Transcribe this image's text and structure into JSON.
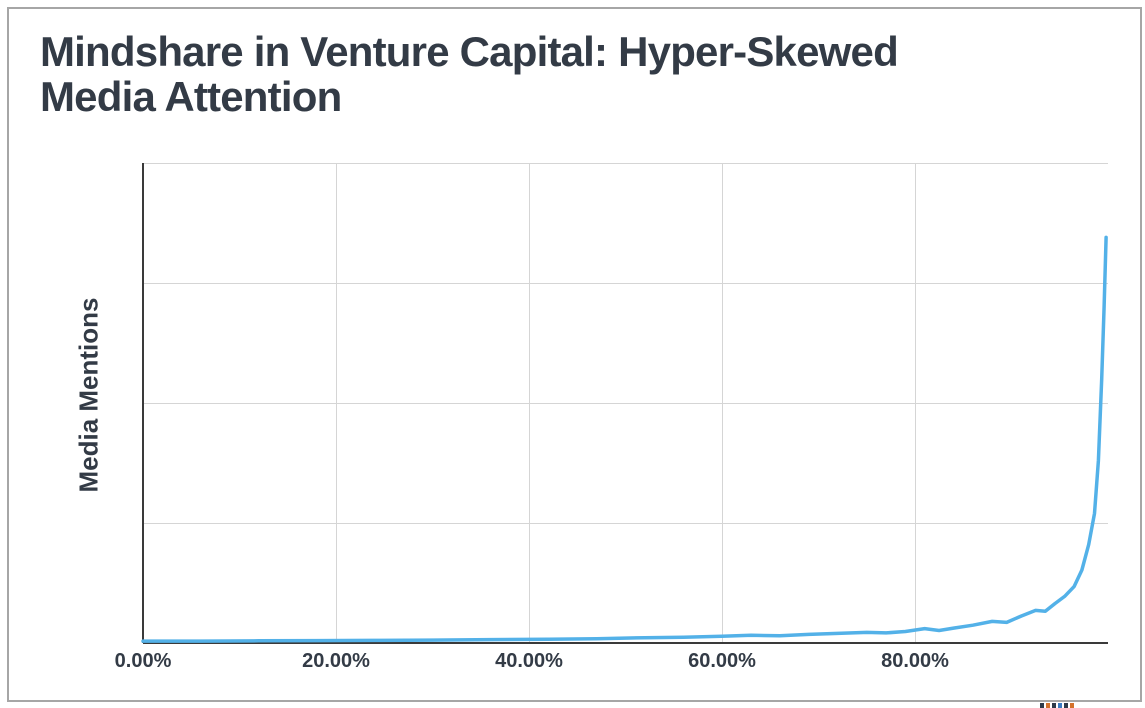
{
  "page": {
    "background": "#ffffff",
    "frame_border_color": "#a6a6a6"
  },
  "title": {
    "line1": "Mindshare in Venture Capital: Hyper-Skewed",
    "line2": "Media Attention",
    "full_text": "Mindshare in Venture Capital: Hyper-Skewed Media Attention",
    "color": "#333b46"
  },
  "chart_data": {
    "type": "line",
    "title": "Mindshare in Venture Capital: Hyper-Skewed Media Attention",
    "xlabel": "",
    "ylabel": "Media Mentions",
    "xlim": [
      0,
      100
    ],
    "ylim": [
      0,
      1
    ],
    "grid": true,
    "legend": "none",
    "y_tick_labels_shown": false,
    "x_tick_values": [
      0,
      20,
      40,
      60,
      80
    ],
    "x_tick_labels": [
      "0.00%",
      "20.00%",
      "40.00%",
      "60.00%",
      "80.00%"
    ],
    "y_grid_fractions_from_top": [
      0,
      0.25,
      0.5,
      0.75
    ],
    "line_color": "#53b1e8",
    "line_width": 3.5,
    "axis_color": "#3a3a3a",
    "grid_color": "#d5d5d5",
    "label_color": "#333b46",
    "series": [
      {
        "name": "Media Mentions",
        "note": "x = percentile of firms (%), y = relative media mentions normalized to axis max; curve is near zero until ~80% then spikes at the far right tail",
        "points": [
          [
            0,
            0.004
          ],
          [
            6,
            0.004
          ],
          [
            12,
            0.0045
          ],
          [
            18,
            0.005
          ],
          [
            24,
            0.0055
          ],
          [
            30,
            0.006
          ],
          [
            36,
            0.007
          ],
          [
            42,
            0.008
          ],
          [
            47,
            0.009
          ],
          [
            52,
            0.011
          ],
          [
            56,
            0.012
          ],
          [
            60,
            0.014
          ],
          [
            63,
            0.016
          ],
          [
            66,
            0.015
          ],
          [
            69,
            0.018
          ],
          [
            72,
            0.02
          ],
          [
            75,
            0.022
          ],
          [
            77,
            0.021
          ],
          [
            79,
            0.024
          ],
          [
            81,
            0.03
          ],
          [
            82.5,
            0.026
          ],
          [
            84,
            0.031
          ],
          [
            86,
            0.037
          ],
          [
            88,
            0.045
          ],
          [
            89.5,
            0.043
          ],
          [
            91,
            0.056
          ],
          [
            92.5,
            0.068
          ],
          [
            93.5,
            0.066
          ],
          [
            94.5,
            0.082
          ],
          [
            95.5,
            0.097
          ],
          [
            96.5,
            0.118
          ],
          [
            97.3,
            0.152
          ],
          [
            98,
            0.205
          ],
          [
            98.6,
            0.27
          ],
          [
            99,
            0.38
          ],
          [
            99.35,
            0.55
          ],
          [
            99.6,
            0.7
          ],
          [
            99.8,
            0.845
          ]
        ]
      }
    ]
  },
  "watermark": {
    "description": "tiny logo text cropped by bottom edge of image",
    "mark_colors": [
      "#2d3a4a",
      "#d4722b",
      "#2d3a4a",
      "#3a7bc2",
      "#2d3a4a",
      "#d4722b"
    ]
  }
}
